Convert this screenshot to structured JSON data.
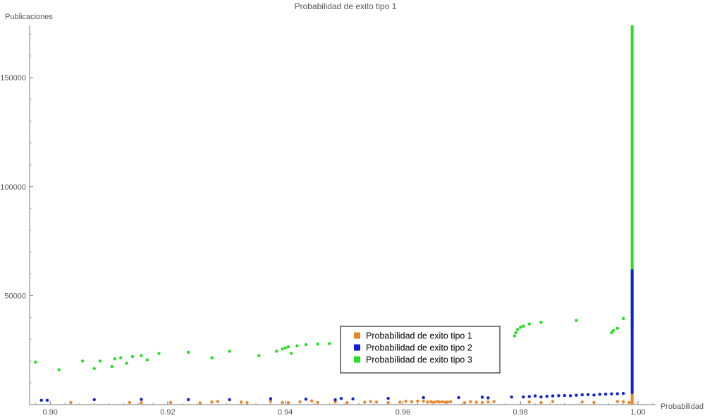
{
  "chart_data": {
    "type": "scatter",
    "title": "Probabilidad  de  exito  tipo  1",
    "xlabel": "Probabilidad",
    "ylabel": "Publicaciones",
    "xlim": [
      0.8965,
      1.003
    ],
    "ylim": [
      0,
      174000
    ],
    "x_ticks": [
      0.9,
      0.92,
      0.94,
      0.96,
      0.98,
      1.0
    ],
    "x_tick_labels": [
      "0.90",
      "0.92",
      "0.94",
      "0.96",
      "0.98",
      "1.00"
    ],
    "y_ticks": [
      50000,
      100000,
      150000
    ],
    "y_tick_labels": [
      "50000",
      "100000",
      "150000"
    ],
    "grid": false,
    "legend_position": "center",
    "series": [
      {
        "name": "Probabilidad  de  exito  tipo  1",
        "color": "#E8862A",
        "points": [
          [
            0.9035,
            1000
          ],
          [
            0.9135,
            1000
          ],
          [
            0.9155,
            900
          ],
          [
            0.9205,
            1000
          ],
          [
            0.9255,
            800
          ],
          [
            0.9275,
            1200
          ],
          [
            0.9285,
            1400
          ],
          [
            0.9325,
            1200
          ],
          [
            0.9335,
            900
          ],
          [
            0.9375,
            1500
          ],
          [
            0.9395,
            1000
          ],
          [
            0.9405,
            900
          ],
          [
            0.9425,
            1300
          ],
          [
            0.9445,
            1700
          ],
          [
            0.9455,
            1000
          ],
          [
            0.9485,
            1200
          ],
          [
            0.9505,
            900
          ],
          [
            0.9535,
            1100
          ],
          [
            0.9545,
            1400
          ],
          [
            0.9555,
            1200
          ],
          [
            0.9575,
            900
          ],
          [
            0.9595,
            1100
          ],
          [
            0.9605,
            1500
          ],
          [
            0.9615,
            1300
          ],
          [
            0.9625,
            1600
          ],
          [
            0.9635,
            1500
          ],
          [
            0.9642,
            1200
          ],
          [
            0.9648,
            1300
          ],
          [
            0.9653,
            1100
          ],
          [
            0.9658,
            1400
          ],
          [
            0.9662,
            1200
          ],
          [
            0.9667,
            1300
          ],
          [
            0.9672,
            1100
          ],
          [
            0.9676,
            1200
          ],
          [
            0.9681,
            1300
          ],
          [
            0.9705,
            900
          ],
          [
            0.9715,
            1300
          ],
          [
            0.9725,
            1100
          ],
          [
            0.9735,
            1000
          ],
          [
            0.9745,
            1200
          ],
          [
            0.9755,
            1400
          ],
          [
            0.9815,
            1200
          ],
          [
            0.9835,
            1000
          ],
          [
            0.9855,
            1400
          ],
          [
            0.9905,
            1200
          ],
          [
            0.9925,
            1000
          ],
          [
            0.9965,
            1400
          ],
          [
            0.9975,
            1300
          ],
          [
            0.9985,
            1000
          ],
          [
            0.999,
            5000
          ]
        ]
      },
      {
        "name": "Probabilidad  de  exito  tipo  2",
        "color": "#1020D0",
        "points": [
          [
            0.8985,
            2000
          ],
          [
            0.8995,
            2000
          ],
          [
            0.9075,
            2300
          ],
          [
            0.9155,
            2400
          ],
          [
            0.9235,
            2300
          ],
          [
            0.9305,
            2300
          ],
          [
            0.9375,
            2700
          ],
          [
            0.9435,
            2500
          ],
          [
            0.9485,
            2200
          ],
          [
            0.9495,
            2800
          ],
          [
            0.9515,
            2600
          ],
          [
            0.9575,
            2900
          ],
          [
            0.9635,
            3200
          ],
          [
            0.9695,
            3200
          ],
          [
            0.9735,
            3400
          ],
          [
            0.9745,
            3100
          ],
          [
            0.9785,
            3500
          ],
          [
            0.9805,
            3500
          ],
          [
            0.9815,
            3700
          ],
          [
            0.9825,
            4000
          ],
          [
            0.9835,
            3500
          ],
          [
            0.9845,
            3800
          ],
          [
            0.9855,
            4000
          ],
          [
            0.9865,
            4100
          ],
          [
            0.9875,
            4200
          ],
          [
            0.9885,
            4100
          ],
          [
            0.9895,
            4300
          ],
          [
            0.9905,
            4500
          ],
          [
            0.9915,
            4600
          ],
          [
            0.9925,
            4400
          ],
          [
            0.9935,
            4700
          ],
          [
            0.9945,
            4800
          ],
          [
            0.9955,
            4900
          ],
          [
            0.9965,
            5000
          ],
          [
            0.9975,
            5100
          ]
        ]
      },
      {
        "name": "Probabilidad  de  exito  tipo  3",
        "color": "#22E022",
        "points": [
          [
            0.8975,
            19500
          ],
          [
            0.9015,
            16000
          ],
          [
            0.9055,
            20000
          ],
          [
            0.9075,
            16500
          ],
          [
            0.9085,
            20000
          ],
          [
            0.9105,
            17500
          ],
          [
            0.911,
            21000
          ],
          [
            0.912,
            21500
          ],
          [
            0.913,
            19000
          ],
          [
            0.914,
            22000
          ],
          [
            0.9155,
            22500
          ],
          [
            0.9165,
            20500
          ],
          [
            0.9185,
            23500
          ],
          [
            0.9235,
            24000
          ],
          [
            0.9275,
            21500
          ],
          [
            0.9305,
            24500
          ],
          [
            0.9355,
            22500
          ],
          [
            0.9385,
            24500
          ],
          [
            0.9395,
            25500
          ],
          [
            0.94,
            26000
          ],
          [
            0.9405,
            26500
          ],
          [
            0.941,
            23500
          ],
          [
            0.942,
            27000
          ],
          [
            0.9435,
            27500
          ],
          [
            0.9455,
            27800
          ],
          [
            0.9475,
            28000
          ],
          [
            0.9505,
            28300
          ],
          [
            0.9535,
            27500
          ],
          [
            0.9555,
            28600
          ],
          [
            0.9575,
            28200
          ],
          [
            0.9605,
            28500
          ],
          [
            0.9635,
            28900
          ],
          [
            0.965,
            29000
          ],
          [
            0.9735,
            30000
          ],
          [
            0.9745,
            30400
          ],
          [
            0.9755,
            30800
          ],
          [
            0.979,
            31500
          ],
          [
            0.9792,
            33000
          ],
          [
            0.9795,
            34500
          ],
          [
            0.98,
            35500
          ],
          [
            0.9805,
            36000
          ],
          [
            0.9815,
            37000
          ],
          [
            0.9835,
            37800
          ],
          [
            0.9895,
            38600
          ],
          [
            0.9955,
            33000
          ],
          [
            0.9958,
            34000
          ],
          [
            0.9965,
            35000
          ],
          [
            0.9975,
            39500
          ]
        ]
      }
    ],
    "vertical_bands": [
      {
        "series": "Probabilidad  de  exito  tipo  3",
        "x": 0.999,
        "y_min": 35000,
        "y_max": 174000
      },
      {
        "series": "Probabilidad  de  exito  tipo  2",
        "x": 0.999,
        "y_min": 5000,
        "y_max": 62000
      },
      {
        "series": "Probabilidad  de  exito  tipo  1",
        "x": 0.999,
        "y_min": 0,
        "y_max": 5000
      }
    ]
  }
}
